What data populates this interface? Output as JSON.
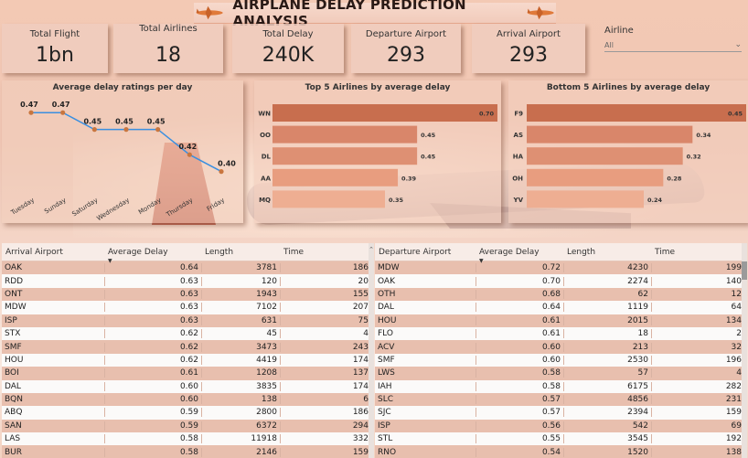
{
  "title": "AIRPLANE DELAY PREDICTION ANALYSIS",
  "kpis": [
    {
      "label": "Total Flight",
      "value": "1bn"
    },
    {
      "label": "Total Airlines",
      "value": "18"
    },
    {
      "label": "Total Delay",
      "value": "240K"
    },
    {
      "label": "Departure Airport",
      "value": "293"
    },
    {
      "label": "Arrival Airport",
      "value": "293"
    }
  ],
  "slicer": {
    "label": "Airline",
    "value": "All"
  },
  "charts": {
    "line": {
      "title": "Average delay ratings per day",
      "categories": [
        "Tuesday",
        "Sunday",
        "Saturday",
        "Wednesday",
        "Monday",
        "Thursday",
        "Friday"
      ],
      "values": [
        0.47,
        0.47,
        0.45,
        0.45,
        0.45,
        0.42,
        0.4
      ],
      "labels": [
        "0.47",
        "0.47",
        "0.45",
        "0.45",
        "0.45",
        "0.42",
        "0.40"
      ]
    },
    "top5": {
      "title": "Top 5 Airlines by average delay",
      "categories": [
        "WN",
        "OO",
        "DL",
        "AA",
        "MQ"
      ],
      "values": [
        0.7,
        0.45,
        0.45,
        0.39,
        0.35
      ],
      "labels": [
        "0.70",
        "0.45",
        "0.45",
        "0.39",
        "0.35"
      ]
    },
    "bottom5": {
      "title": "Bottom 5 Airlines by average delay",
      "categories": [
        "F9",
        "AS",
        "HA",
        "OH",
        "YV"
      ],
      "values": [
        0.45,
        0.34,
        0.32,
        0.28,
        0.24
      ],
      "labels": [
        "0.45",
        "0.34",
        "0.32",
        "0.28",
        "0.24"
      ]
    }
  },
  "chart_data": [
    {
      "type": "line",
      "title": "Average delay ratings per day",
      "categories": [
        "Tuesday",
        "Sunday",
        "Saturday",
        "Wednesday",
        "Monday",
        "Thursday",
        "Friday"
      ],
      "values": [
        0.47,
        0.47,
        0.45,
        0.45,
        0.45,
        0.42,
        0.4
      ]
    },
    {
      "type": "bar",
      "title": "Top 5 Airlines by average delay",
      "categories": [
        "WN",
        "OO",
        "DL",
        "AA",
        "MQ"
      ],
      "values": [
        0.7,
        0.45,
        0.45,
        0.39,
        0.35
      ]
    },
    {
      "type": "bar",
      "title": "Bottom 5 Airlines by average delay",
      "categories": [
        "F9",
        "AS",
        "HA",
        "OH",
        "YV"
      ],
      "values": [
        0.45,
        0.34,
        0.32,
        0.28,
        0.24
      ]
    }
  ],
  "arrival_table": {
    "headers": [
      "Arrival Airport",
      "Average Delay",
      "Length",
      "Time"
    ],
    "rows": [
      [
        "OAK",
        "0.64",
        "3781",
        "186"
      ],
      [
        "RDD",
        "0.63",
        "120",
        "20"
      ],
      [
        "ONT",
        "0.63",
        "1943",
        "155"
      ],
      [
        "MDW",
        "0.63",
        "7102",
        "207"
      ],
      [
        "ISP",
        "0.63",
        "631",
        "75"
      ],
      [
        "STX",
        "0.62",
        "45",
        "4"
      ],
      [
        "SMF",
        "0.62",
        "3473",
        "243"
      ],
      [
        "HOU",
        "0.62",
        "4419",
        "174"
      ],
      [
        "BOI",
        "0.61",
        "1208",
        "137"
      ],
      [
        "DAL",
        "0.60",
        "3835",
        "174"
      ],
      [
        "BQN",
        "0.60",
        "138",
        "6"
      ],
      [
        "ABQ",
        "0.59",
        "2800",
        "186"
      ],
      [
        "SAN",
        "0.59",
        "6372",
        "294"
      ],
      [
        "LAS",
        "0.58",
        "11918",
        "332"
      ],
      [
        "BUR",
        "0.58",
        "2146",
        "159"
      ]
    ]
  },
  "departure_table": {
    "headers": [
      "Departure Airport",
      "Average Delay",
      "Length",
      "Time"
    ],
    "rows": [
      [
        "MDW",
        "0.72",
        "4230",
        "199"
      ],
      [
        "OAK",
        "0.70",
        "2274",
        "140"
      ],
      [
        "OTH",
        "0.68",
        "62",
        "12"
      ],
      [
        "DAL",
        "0.64",
        "1119",
        "64"
      ],
      [
        "HOU",
        "0.61",
        "2015",
        "134"
      ],
      [
        "FLO",
        "0.61",
        "18",
        "2"
      ],
      [
        "ACV",
        "0.60",
        "213",
        "32"
      ],
      [
        "SMF",
        "0.60",
        "2530",
        "196"
      ],
      [
        "LWS",
        "0.58",
        "57",
        "4"
      ],
      [
        "IAH",
        "0.58",
        "6175",
        "282"
      ],
      [
        "SLC",
        "0.57",
        "4856",
        "231"
      ],
      [
        "SJC",
        "0.57",
        "2394",
        "159"
      ],
      [
        "ISP",
        "0.56",
        "542",
        "69"
      ],
      [
        "STL",
        "0.55",
        "3545",
        "192"
      ],
      [
        "RNO",
        "0.54",
        "1520",
        "138"
      ]
    ]
  },
  "colors": {
    "line": "#3a8fe0",
    "marker": "#c9763f",
    "bars": [
      "#c86e4e",
      "#d9866a",
      "#de9073",
      "#e89d7f",
      "#eeae92"
    ]
  }
}
